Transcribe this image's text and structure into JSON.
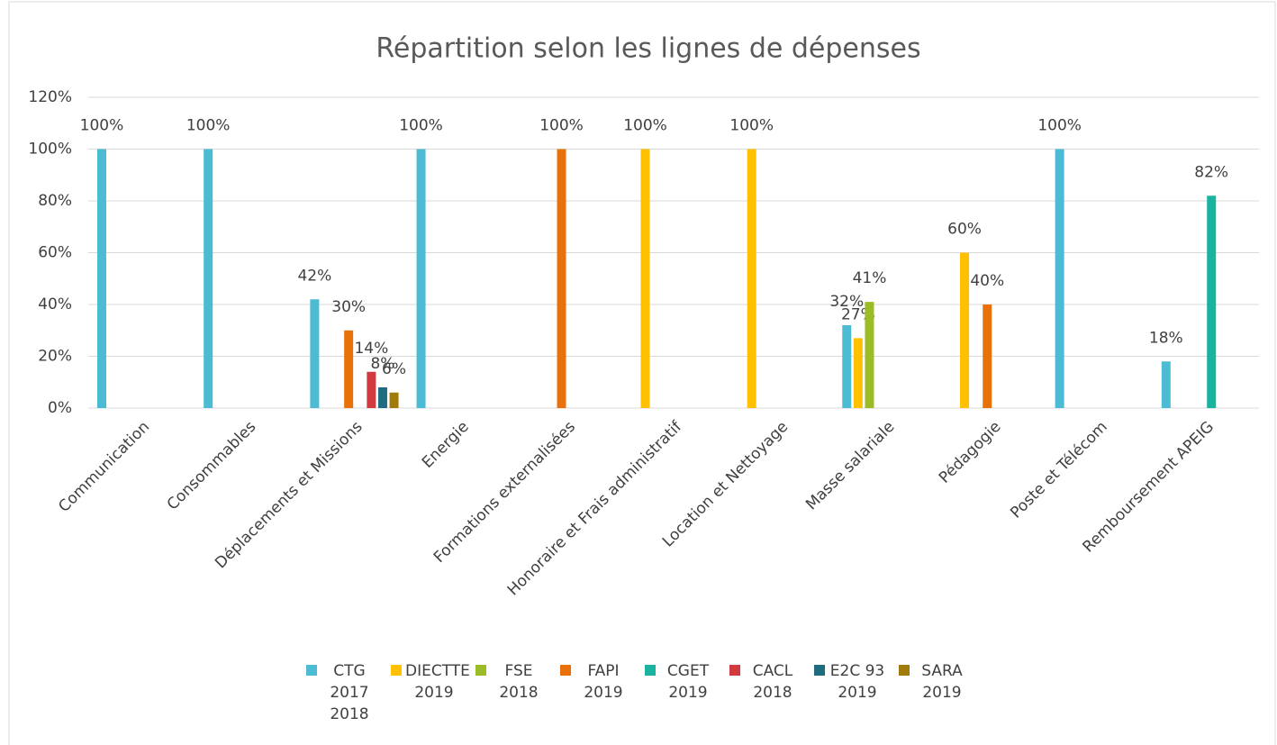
{
  "chart_data": {
    "type": "bar",
    "title": "Répartition selon les lignes de dépenses",
    "categories": [
      "Communication",
      "Consommables",
      "Déplacements et Missions",
      "Energie",
      "Formations externalisées",
      "Honoraire et Frais administratif",
      "Location et Nettoyage",
      "Masse salariale",
      "Pédagogie",
      "Poste et Télécom",
      "Remboursement APEIG"
    ],
    "series": [
      {
        "name": "CTG 2017 2018",
        "color": "#4bbcd4",
        "values": [
          100,
          100,
          42,
          100,
          null,
          null,
          null,
          32,
          null,
          100,
          18
        ],
        "value_labels": [
          "100%",
          "100%",
          "42%",
          "100%",
          null,
          null,
          null,
          "32%",
          null,
          "100%",
          "18%"
        ]
      },
      {
        "name": "DIECTTE 2019",
        "color": "#ffc000",
        "values": [
          null,
          null,
          null,
          null,
          null,
          100,
          100,
          27,
          60,
          null,
          null
        ],
        "value_labels": [
          null,
          null,
          null,
          null,
          null,
          "100%",
          "100%",
          "27%",
          "60%",
          null,
          null
        ]
      },
      {
        "name": "FSE 2018",
        "color": "#9bbb27",
        "values": [
          null,
          null,
          null,
          null,
          null,
          null,
          null,
          41,
          null,
          null,
          null
        ],
        "value_labels": [
          null,
          null,
          null,
          null,
          null,
          null,
          null,
          "41%",
          null,
          null,
          null
        ]
      },
      {
        "name": "FAPI 2019",
        "color": "#e8710a",
        "values": [
          null,
          null,
          30,
          null,
          100,
          null,
          null,
          null,
          40,
          null,
          null
        ],
        "value_labels": [
          null,
          null,
          "30%",
          null,
          "100%",
          null,
          null,
          null,
          "40%",
          null,
          null
        ]
      },
      {
        "name": "CGET 2019",
        "color": "#1ab3a0",
        "values": [
          null,
          null,
          null,
          null,
          null,
          null,
          null,
          null,
          null,
          null,
          82
        ],
        "value_labels": [
          null,
          null,
          null,
          null,
          null,
          null,
          null,
          null,
          null,
          null,
          "82%"
        ]
      },
      {
        "name": "CACL 2018",
        "color": "#d13b40",
        "values": [
          null,
          null,
          14,
          null,
          null,
          null,
          null,
          null,
          null,
          null,
          null
        ],
        "value_labels": [
          null,
          null,
          "14%",
          null,
          null,
          null,
          null,
          null,
          null,
          null,
          null
        ]
      },
      {
        "name": "E2C 93 2019",
        "color": "#1f6b80",
        "values": [
          null,
          null,
          8,
          null,
          null,
          null,
          null,
          null,
          null,
          null,
          null
        ],
        "value_labels": [
          null,
          null,
          "8%",
          null,
          null,
          null,
          null,
          null,
          null,
          null,
          null
        ]
      },
      {
        "name": "SARA 2019",
        "color": "#a07b0a",
        "values": [
          null,
          null,
          6,
          null,
          null,
          null,
          null,
          null,
          null,
          null,
          null
        ],
        "value_labels": [
          null,
          null,
          "6%",
          null,
          null,
          null,
          null,
          null,
          null,
          null,
          null
        ]
      }
    ],
    "ylim": [
      0,
      120
    ],
    "yticks": [
      {
        "value": 0,
        "label": "0%"
      },
      {
        "value": 20,
        "label": "20%"
      },
      {
        "value": 40,
        "label": "40%"
      },
      {
        "value": 60,
        "label": "60%"
      },
      {
        "value": 80,
        "label": "80%"
      },
      {
        "value": 100,
        "label": "100%"
      },
      {
        "value": 120,
        "label": "120%"
      }
    ],
    "grid": true
  }
}
